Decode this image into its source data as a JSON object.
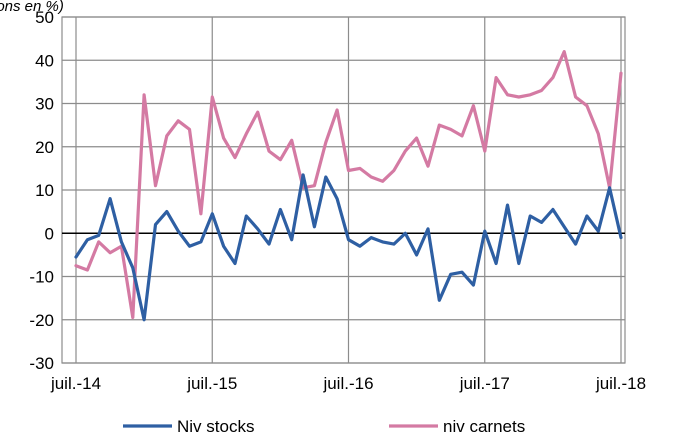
{
  "header": {
    "cut_title": "... saisonnier, en solde d'opinions en %)"
  },
  "chart_data": {
    "type": "line",
    "title": "",
    "xlabel": "",
    "ylabel": "",
    "ylim": [
      -30,
      50
    ],
    "y_ticks": [
      -30,
      -20,
      -10,
      0,
      10,
      20,
      30,
      40,
      50
    ],
    "x_start": "2014-07",
    "x_ticks": [
      {
        "label": "juil.-14",
        "date": "2014-07"
      },
      {
        "label": "juil.-15",
        "date": "2015-07"
      },
      {
        "label": "juil.-16",
        "date": "2016-07"
      },
      {
        "label": "juil.-17",
        "date": "2017-07"
      },
      {
        "label": "juil.-18",
        "date": "2018-07"
      }
    ],
    "grid": true,
    "legend_position": "bottom",
    "series": [
      {
        "name": "Niv stocks",
        "color": "#2e5fa3",
        "values": [
          -5.5,
          -1.5,
          -0.5,
          8,
          -2,
          -8,
          -20,
          2,
          5,
          0.5,
          -3,
          -2,
          4.5,
          -3,
          -7,
          4,
          1,
          -2.5,
          5.5,
          -1.5,
          13.5,
          1.5,
          13,
          8,
          -1.5,
          -3,
          -1,
          -2,
          -2.5,
          0,
          -5,
          1,
          -15.5,
          -9.5,
          -9,
          -12,
          0.5,
          -7,
          6.5,
          -7,
          4,
          2.5,
          5.5,
          1.5,
          -2.5,
          4,
          0.5,
          10.5,
          -1
        ]
      },
      {
        "name": "niv carnets",
        "color": "#d47aa3",
        "values": [
          -7.5,
          -8.5,
          -2,
          -4.5,
          -3,
          -19.5,
          32,
          11,
          22.5,
          26,
          24,
          4.5,
          31.5,
          22,
          17.5,
          23,
          28,
          19,
          17,
          21.5,
          10.5,
          11,
          21,
          28.5,
          14.5,
          15,
          13,
          12,
          14.5,
          19,
          22,
          15.5,
          25,
          24,
          22.5,
          29.5,
          19,
          36,
          32,
          31.5,
          32,
          33,
          36,
          42,
          31.5,
          29.5,
          23,
          10.5,
          37
        ]
      }
    ]
  }
}
